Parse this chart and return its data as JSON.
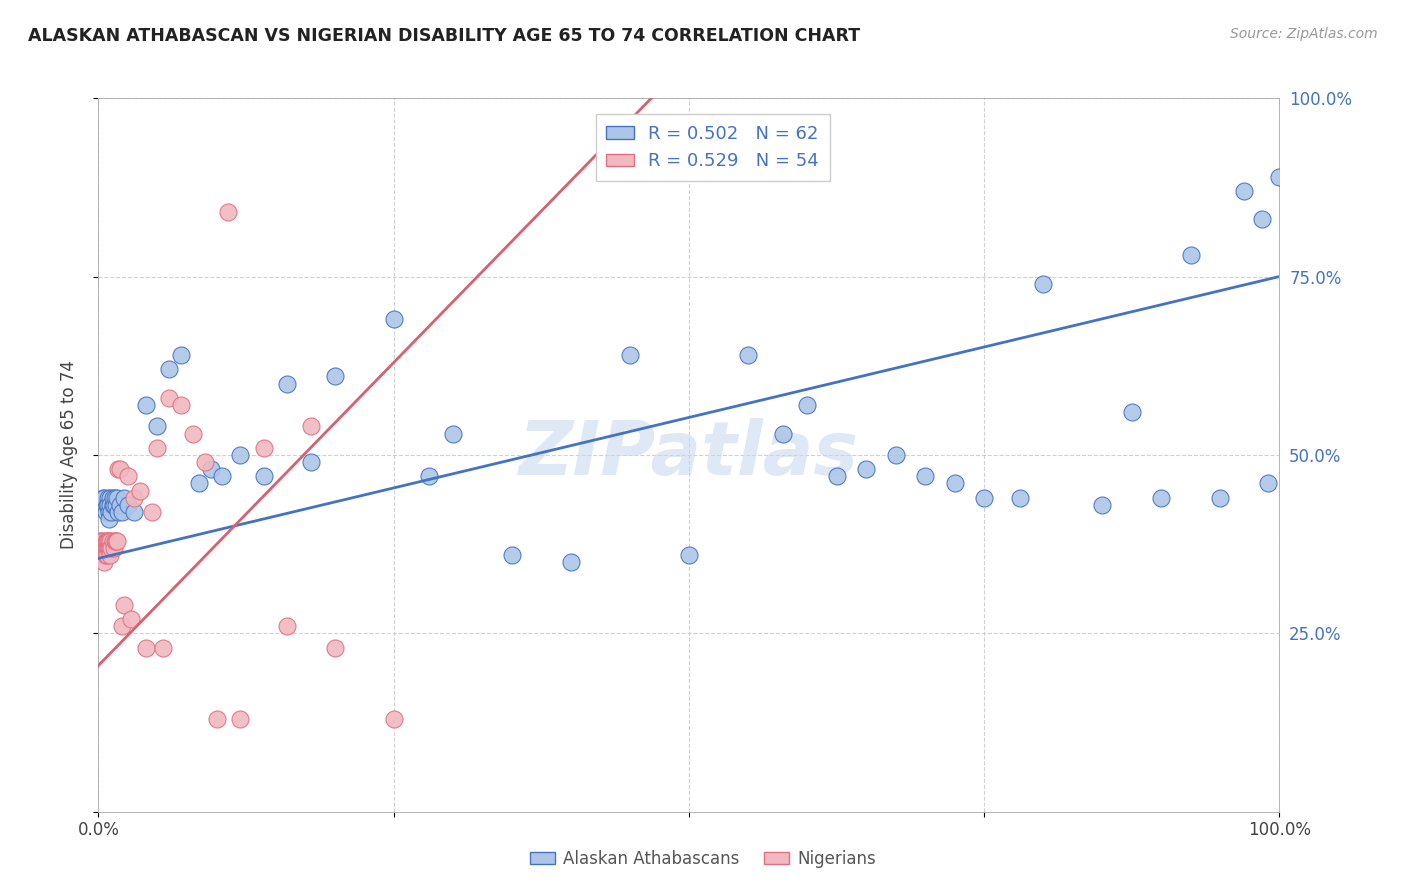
{
  "title": "ALASKAN ATHABASCAN VS NIGERIAN DISABILITY AGE 65 TO 74 CORRELATION CHART",
  "source": "Source: ZipAtlas.com",
  "ylabel": "Disability Age 65 to 74",
  "xlim": [
    0.0,
    1.0
  ],
  "ylim": [
    0.0,
    1.0
  ],
  "xtick_positions": [
    0.0,
    0.25,
    0.5,
    0.75,
    1.0
  ],
  "xtick_labels": [
    "0.0%",
    "",
    "",
    "",
    "100.0%"
  ],
  "ytick_positions": [
    0.0,
    0.25,
    0.5,
    0.75,
    1.0
  ],
  "ytick_labels_right": [
    "",
    "25.0%",
    "50.0%",
    "75.0%",
    "100.0%"
  ],
  "blue_color": "#adc6e8",
  "pink_color": "#f2b8c0",
  "blue_edge_color": "#4472c4",
  "pink_edge_color": "#e07080",
  "blue_line_color": "#4472c4",
  "pink_line_color": "#d9606e",
  "legend_text_color": "#4472c4",
  "legend_blue_label": "R = 0.502   N = 62",
  "legend_pink_label": "R = 0.529   N = 54",
  "watermark": "ZIPatlas",
  "blue_line": [
    0.0,
    0.355,
    1.0,
    0.75
  ],
  "pink_line": [
    -0.05,
    0.12,
    0.48,
    1.02
  ],
  "blue_scatter_x": [
    0.004,
    0.005,
    0.006,
    0.007,
    0.008,
    0.008,
    0.009,
    0.009,
    0.01,
    0.01,
    0.011,
    0.012,
    0.012,
    0.013,
    0.014,
    0.015,
    0.016,
    0.017,
    0.018,
    0.02,
    0.022,
    0.025,
    0.03,
    0.04,
    0.05,
    0.06,
    0.07,
    0.085,
    0.095,
    0.105,
    0.12,
    0.14,
    0.16,
    0.18,
    0.2,
    0.25,
    0.28,
    0.3,
    0.35,
    0.4,
    0.45,
    0.5,
    0.55,
    0.58,
    0.6,
    0.625,
    0.65,
    0.675,
    0.7,
    0.725,
    0.75,
    0.78,
    0.8,
    0.85,
    0.875,
    0.9,
    0.925,
    0.95,
    0.97,
    0.985,
    0.99,
    1.0
  ],
  "blue_scatter_y": [
    0.44,
    0.44,
    0.42,
    0.43,
    0.44,
    0.43,
    0.42,
    0.41,
    0.44,
    0.43,
    0.42,
    0.43,
    0.44,
    0.43,
    0.44,
    0.43,
    0.44,
    0.42,
    0.43,
    0.42,
    0.44,
    0.43,
    0.42,
    0.57,
    0.54,
    0.62,
    0.64,
    0.46,
    0.48,
    0.47,
    0.5,
    0.47,
    0.6,
    0.49,
    0.61,
    0.69,
    0.47,
    0.53,
    0.36,
    0.35,
    0.64,
    0.36,
    0.64,
    0.53,
    0.57,
    0.47,
    0.48,
    0.5,
    0.47,
    0.46,
    0.44,
    0.44,
    0.74,
    0.43,
    0.56,
    0.44,
    0.78,
    0.44,
    0.87,
    0.83,
    0.46,
    0.89
  ],
  "pink_scatter_x": [
    0.001,
    0.001,
    0.002,
    0.002,
    0.003,
    0.003,
    0.004,
    0.004,
    0.005,
    0.005,
    0.005,
    0.006,
    0.006,
    0.006,
    0.007,
    0.007,
    0.007,
    0.008,
    0.008,
    0.009,
    0.009,
    0.01,
    0.01,
    0.01,
    0.011,
    0.012,
    0.013,
    0.014,
    0.015,
    0.016,
    0.017,
    0.018,
    0.02,
    0.022,
    0.025,
    0.028,
    0.03,
    0.035,
    0.04,
    0.045,
    0.05,
    0.055,
    0.06,
    0.07,
    0.08,
    0.09,
    0.1,
    0.11,
    0.12,
    0.14,
    0.16,
    0.18,
    0.2,
    0.25
  ],
  "pink_scatter_y": [
    0.38,
    0.37,
    0.38,
    0.37,
    0.37,
    0.36,
    0.38,
    0.37,
    0.37,
    0.36,
    0.35,
    0.38,
    0.37,
    0.36,
    0.38,
    0.37,
    0.36,
    0.38,
    0.37,
    0.38,
    0.37,
    0.38,
    0.37,
    0.36,
    0.37,
    0.38,
    0.37,
    0.38,
    0.38,
    0.38,
    0.48,
    0.48,
    0.26,
    0.29,
    0.47,
    0.27,
    0.44,
    0.45,
    0.23,
    0.42,
    0.51,
    0.23,
    0.58,
    0.57,
    0.53,
    0.49,
    0.13,
    0.84,
    0.13,
    0.51,
    0.26,
    0.54,
    0.23,
    0.13
  ]
}
